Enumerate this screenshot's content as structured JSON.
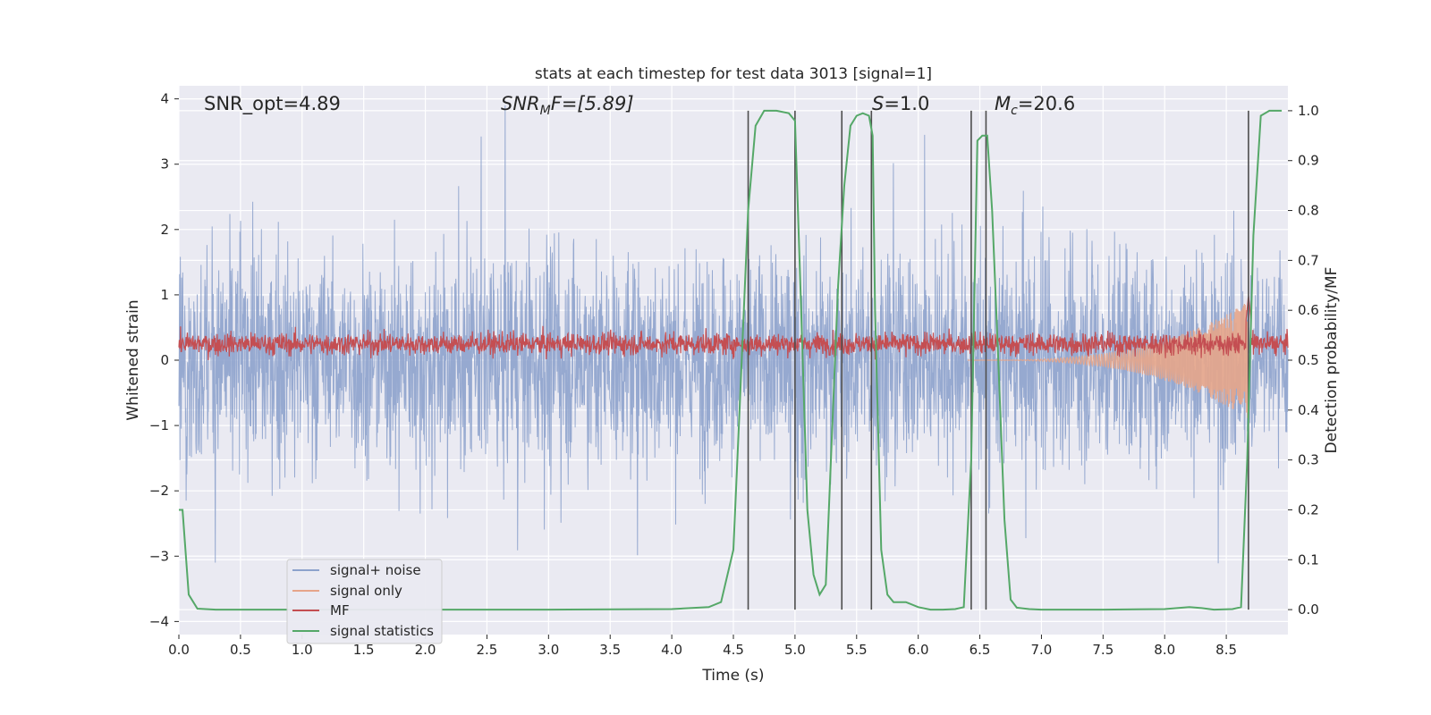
{
  "chart_data": {
    "type": "line",
    "title": "stats at each timestep for test data 3013 [signal=1]",
    "xlabel": "Time (s)",
    "ylabel_left": "Whitened strain",
    "ylabel_right": "Detection probability/MF",
    "xlim": [
      0.0,
      9.0
    ],
    "ylim_left": [
      -4.2,
      4.2
    ],
    "ylim_right": [
      -0.05,
      1.05
    ],
    "x_ticks": [
      "0.0",
      "0.5",
      "1.0",
      "1.5",
      "2.0",
      "2.5",
      "3.0",
      "3.5",
      "4.0",
      "4.5",
      "5.0",
      "5.5",
      "6.0",
      "6.5",
      "7.0",
      "7.5",
      "8.0",
      "8.5"
    ],
    "x_tick_values": [
      0.0,
      0.5,
      1.0,
      1.5,
      2.0,
      2.5,
      3.0,
      3.5,
      4.0,
      4.5,
      5.0,
      5.5,
      6.0,
      6.5,
      7.0,
      7.5,
      8.0,
      8.5
    ],
    "y_left_ticks": [
      "4",
      "3",
      "2",
      "1",
      "0",
      "−1",
      "−2",
      "−3",
      "−4"
    ],
    "y_left_tick_values": [
      4,
      3,
      2,
      1,
      0,
      -1,
      -2,
      -3,
      -4
    ],
    "y_right_ticks": [
      "1.0",
      "0.9",
      "0.8",
      "0.7",
      "0.6",
      "0.5",
      "0.4",
      "0.3",
      "0.2",
      "0.1",
      "0.0"
    ],
    "y_right_tick_values": [
      1.0,
      0.9,
      0.8,
      0.7,
      0.6,
      0.5,
      0.4,
      0.3,
      0.2,
      0.1,
      0.0
    ],
    "grid": true,
    "legend_placement": "lower-left",
    "annotations": {
      "snr_opt": "SNR_opt=4.89",
      "snr_mf_main": "SNR",
      "snr_mf_sub": "M",
      "snr_mf_rest": "F=[5.89]",
      "s_italic": "S",
      "s_rest": "=1.0",
      "mc_main": "M",
      "mc_sub": "c",
      "mc_rest": "=20.6"
    },
    "series": [
      {
        "name": "signal+ noise",
        "color": "#8da2cc",
        "axis": "left",
        "description_envelope": {
          "typical_band": [
            -1.6,
            1.5
          ],
          "spikes_max": 3.9,
          "spikes_min": -4.0
        }
      },
      {
        "name": "signal only",
        "color": "#e6a58a",
        "axis": "left",
        "chirp_start": 6.4,
        "chirp_peak_time": 8.68,
        "chirp_peak_amp": 0.9
      },
      {
        "name": "MF",
        "color": "#c44e52",
        "axis": "left",
        "band": [
          0.0,
          0.5
        ],
        "peak": {
          "x": 8.68,
          "y": 1.0
        }
      },
      {
        "name": "signal statistics",
        "color": "#55a868",
        "axis": "right",
        "x": [
          0.0,
          0.03,
          0.08,
          0.15,
          0.3,
          1.0,
          2.0,
          3.0,
          4.0,
          4.3,
          4.4,
          4.5,
          4.55,
          4.62,
          4.68,
          4.75,
          4.85,
          4.95,
          5.0,
          5.05,
          5.1,
          5.15,
          5.2,
          5.25,
          5.3,
          5.35,
          5.4,
          5.45,
          5.5,
          5.55,
          5.6,
          5.63,
          5.65,
          5.7,
          5.75,
          5.8,
          5.9,
          6.0,
          6.1,
          6.2,
          6.3,
          6.37,
          6.43,
          6.48,
          6.52,
          6.56,
          6.6,
          6.65,
          6.7,
          6.75,
          6.8,
          6.9,
          7.0,
          7.5,
          8.0,
          8.2,
          8.3,
          8.4,
          8.55,
          8.62,
          8.67,
          8.72,
          8.78,
          8.85,
          8.95
        ],
        "y": [
          0.2,
          0.2,
          0.03,
          0.002,
          0.0,
          0.0,
          0.0,
          0.0,
          0.001,
          0.005,
          0.015,
          0.12,
          0.4,
          0.8,
          0.97,
          1.0,
          1.0,
          0.995,
          0.98,
          0.6,
          0.2,
          0.07,
          0.03,
          0.05,
          0.35,
          0.65,
          0.85,
          0.97,
          0.99,
          0.995,
          0.99,
          0.95,
          0.6,
          0.12,
          0.03,
          0.015,
          0.015,
          0.005,
          0.0,
          0.0,
          0.001,
          0.005,
          0.3,
          0.94,
          0.95,
          0.95,
          0.8,
          0.5,
          0.18,
          0.02,
          0.004,
          0.001,
          0.0,
          0.0,
          0.001,
          0.005,
          0.003,
          0.0,
          0.001,
          0.005,
          0.3,
          0.75,
          0.99,
          1.0,
          1.0
        ]
      }
    ],
    "detection_lines_x": [
      4.62,
      5.0,
      5.38,
      5.62,
      6.43,
      6.55,
      8.68
    ],
    "detection_line_color": "#4d4d4d"
  }
}
